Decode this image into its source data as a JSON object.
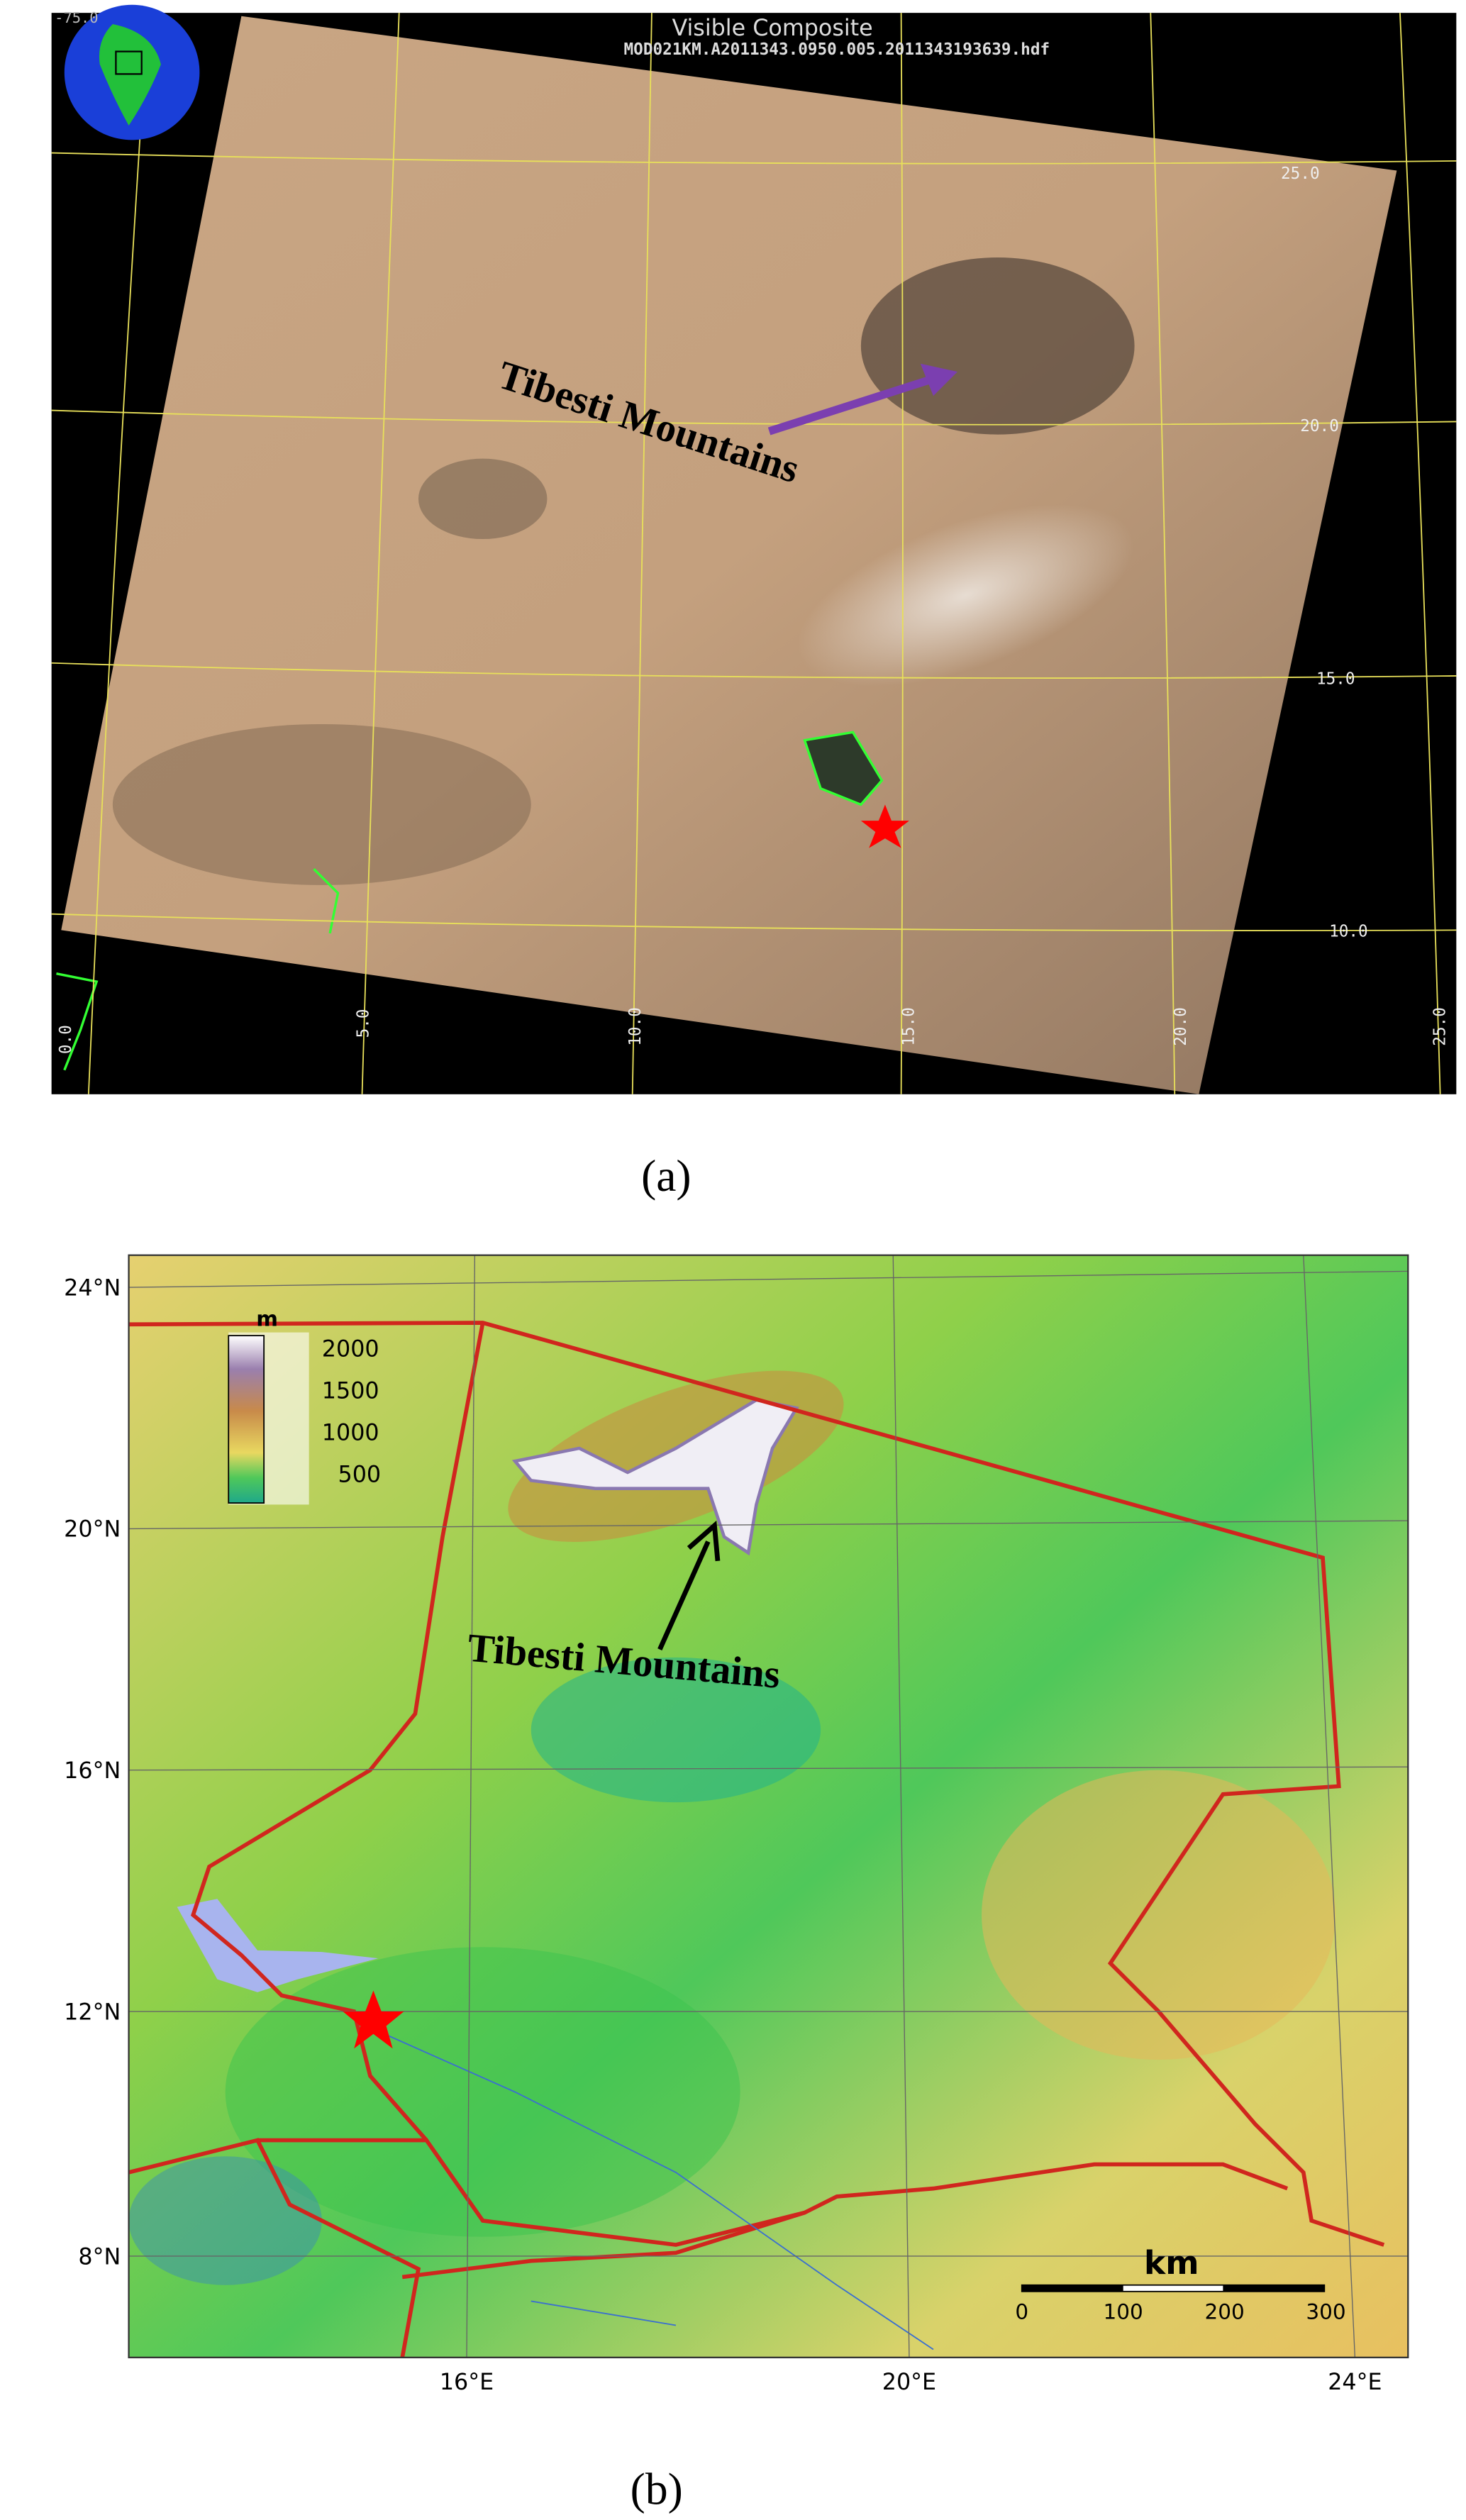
{
  "panel_a": {
    "title": "Visible Composite",
    "filename": "MOD021KM.A2011343.0950.005.2011343193639.hdf",
    "corner_label": "-75.0",
    "lat_labels": [
      "25.0",
      "20.0",
      "15.0",
      "10.0"
    ],
    "lon_labels": [
      "0.0",
      "5.0",
      "10.0",
      "15.0",
      "20.0",
      "25.0"
    ],
    "annotation": "Tibesti Mountains",
    "caption": "(a)"
  },
  "panel_b": {
    "lat_labels": [
      "24°N",
      "20°N",
      "16°N",
      "12°N",
      "8°N"
    ],
    "lon_labels": [
      "16°E",
      "20°E",
      "24°E"
    ],
    "legend": {
      "unit": "m",
      "labels": [
        "2000",
        "1500",
        "1000",
        "500"
      ]
    },
    "scale": {
      "unit": "km",
      "labels": [
        "0",
        "100",
        "200",
        "300"
      ]
    },
    "annotation": "Tibesti Mountains",
    "caption": "(b)"
  }
}
